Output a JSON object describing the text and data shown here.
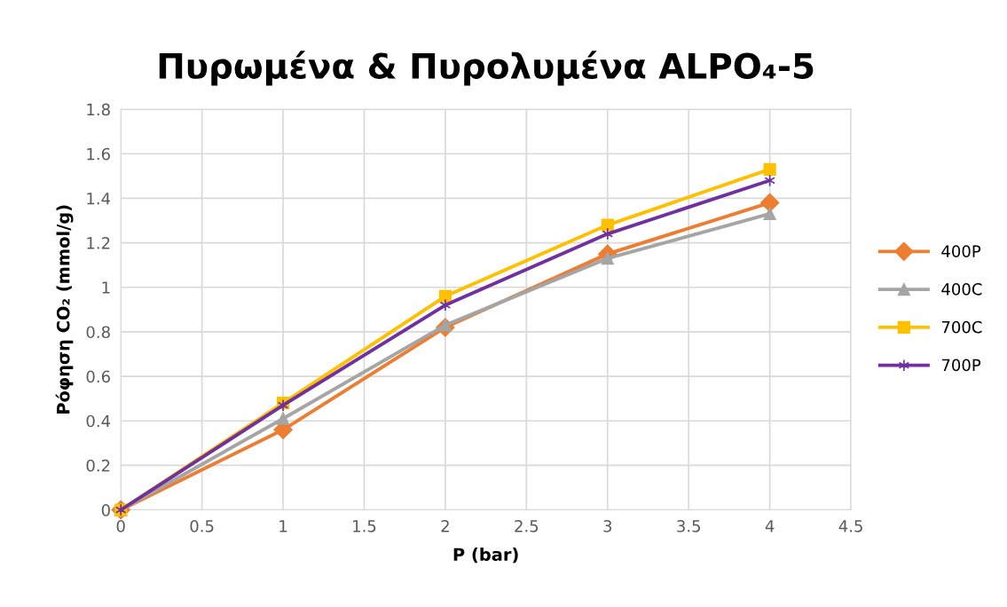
{
  "chart_data": {
    "type": "line",
    "title": "Πυρωμένα & Πυρολυμένα ALPO₄-5",
    "xlabel": "P (bar)",
    "ylabel": "Ρόφηση CO₂ (mmol/g)",
    "x": [
      0,
      1,
      2,
      3,
      4
    ],
    "series": [
      {
        "name": "400P",
        "color": "#ed7d31",
        "marker": "diamond",
        "values": [
          0,
          0.36,
          0.82,
          1.15,
          1.38
        ]
      },
      {
        "name": "400C",
        "color": "#a5a5a5",
        "marker": "triangle",
        "values": [
          0,
          0.41,
          0.83,
          1.13,
          1.33
        ]
      },
      {
        "name": "700C",
        "color": "#ffc000",
        "marker": "square",
        "values": [
          0,
          0.48,
          0.96,
          1.28,
          1.53
        ]
      },
      {
        "name": "700P",
        "color": "#7030a0",
        "marker": "cross",
        "values": [
          0,
          0.47,
          0.92,
          1.24,
          1.48
        ]
      }
    ],
    "xlim": [
      0,
      4.5
    ],
    "xticks": [
      0,
      0.5,
      1,
      1.5,
      2,
      2.5,
      3,
      3.5,
      4,
      4.5
    ],
    "ylim": [
      0,
      1.8
    ],
    "yticks": [
      0,
      0.2,
      0.4,
      0.6,
      0.8,
      1,
      1.2,
      1.4,
      1.6,
      1.8
    ],
    "grid": true,
    "legend": "right",
    "line_style": "solid"
  }
}
